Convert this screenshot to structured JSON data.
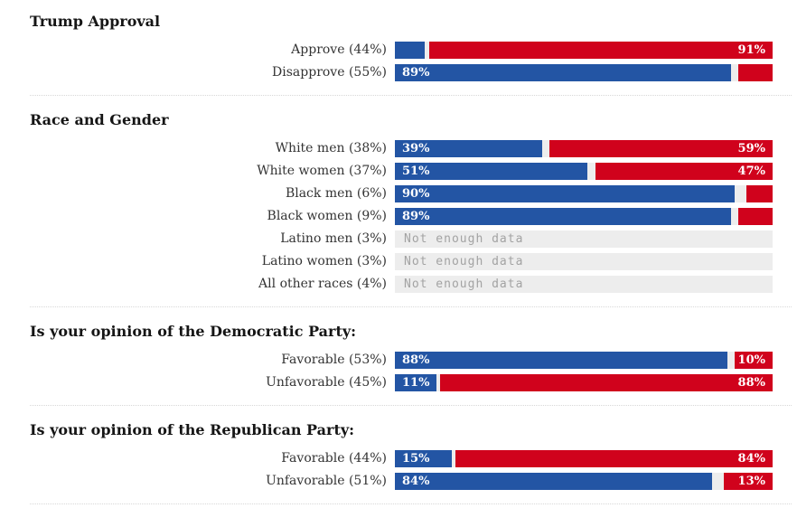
{
  "colors": {
    "blue": "#2355a4",
    "red": "#d0021c",
    "track": "#ededed",
    "divider": "#d8d8d8",
    "no_data_text": "#a3a3a3",
    "header_text": "#151515",
    "row_label_text": "#333333",
    "bar_value_text": "#ffffff"
  },
  "chart_data": {
    "type": "bar",
    "subtype": "horizontal-diverging-stacked",
    "orientation": "horizontal",
    "unit": "%",
    "axis_range": [
      0,
      100
    ],
    "grid": false,
    "legend": false,
    "no_data_label": "Not enough data",
    "sections": [
      {
        "title": "Trump Approval",
        "rows": [
          {
            "label": "Approve (44%)",
            "blue": 8,
            "red": 91,
            "blue_label": "",
            "red_label": "91%",
            "no_data": false
          },
          {
            "label": "Disapprove (55%)",
            "blue": 89,
            "red": 9,
            "blue_label": "89%",
            "red_label": "",
            "no_data": false
          }
        ]
      },
      {
        "title": "Race and Gender",
        "rows": [
          {
            "label": "White men (38%)",
            "blue": 39,
            "red": 59,
            "blue_label": "39%",
            "red_label": "59%",
            "no_data": false
          },
          {
            "label": "White women (37%)",
            "blue": 51,
            "red": 47,
            "blue_label": "51%",
            "red_label": "47%",
            "no_data": false
          },
          {
            "label": "Black men (6%)",
            "blue": 90,
            "red": 7,
            "blue_label": "90%",
            "red_label": "",
            "no_data": false
          },
          {
            "label": "Black women (9%)",
            "blue": 89,
            "red": 9,
            "blue_label": "89%",
            "red_label": "",
            "no_data": false
          },
          {
            "label": "Latino men (3%)",
            "blue": 0,
            "red": 0,
            "blue_label": "",
            "red_label": "",
            "no_data": true
          },
          {
            "label": "Latino women (3%)",
            "blue": 0,
            "red": 0,
            "blue_label": "",
            "red_label": "",
            "no_data": true
          },
          {
            "label": "All other races (4%)",
            "blue": 0,
            "red": 0,
            "blue_label": "",
            "red_label": "",
            "no_data": true
          }
        ]
      },
      {
        "title": "Is your opinion of the Democratic Party:",
        "rows": [
          {
            "label": "Favorable (53%)",
            "blue": 88,
            "red": 10,
            "blue_label": "88%",
            "red_label": "10%",
            "no_data": false
          },
          {
            "label": "Unfavorable (45%)",
            "blue": 11,
            "red": 88,
            "blue_label": "11%",
            "red_label": "88%",
            "no_data": false
          }
        ]
      },
      {
        "title": "Is your opinion of the Republican Party:",
        "rows": [
          {
            "label": "Favorable (44%)",
            "blue": 15,
            "red": 84,
            "blue_label": "15%",
            "red_label": "84%",
            "no_data": false
          },
          {
            "label": "Unfavorable (51%)",
            "blue": 84,
            "red": 13,
            "blue_label": "84%",
            "red_label": "13%",
            "no_data": false
          }
        ]
      }
    ]
  }
}
